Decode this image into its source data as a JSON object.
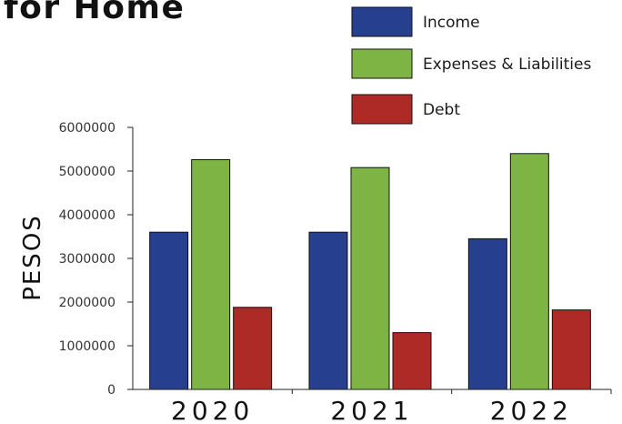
{
  "title_fragment": "for Home",
  "chart_data": {
    "type": "bar",
    "categories": [
      "2020",
      "2021",
      "2022"
    ],
    "series": [
      {
        "name": "Income",
        "color": "#273f8f",
        "values": [
          3600000,
          3600000,
          3450000
        ]
      },
      {
        "name": "Expenses & Liabilities",
        "color": "#7eb444",
        "values": [
          5260000,
          5080000,
          5400000
        ]
      },
      {
        "name": "Debt",
        "color": "#ad2a27",
        "values": [
          1880000,
          1300000,
          1820000
        ]
      }
    ],
    "ylabel": "PESOS",
    "xlabel": "",
    "ylim": [
      0,
      6000000
    ],
    "yticks": [
      0,
      1000000,
      2000000,
      3000000,
      4000000,
      5000000,
      6000000
    ],
    "ytick_labels": [
      "0",
      "1000000",
      "2000000",
      "3000000",
      "4000000",
      "5000000",
      "6000000"
    ],
    "legend_position": "top-right",
    "grid": false
  }
}
